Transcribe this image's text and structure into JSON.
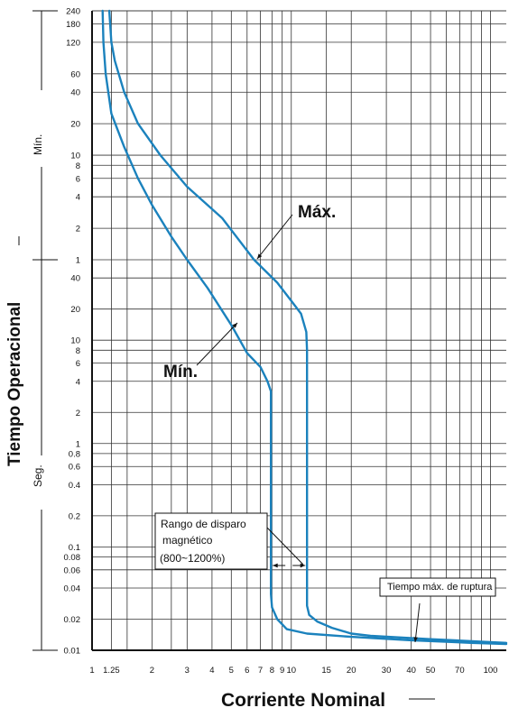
{
  "chart_data": {
    "type": "line",
    "title": "",
    "xlabel": "Corriente Nominal",
    "ylabel": "Tiempo Operacional",
    "x_scale": "log",
    "y_scale": "log",
    "xlim": [
      1,
      120
    ],
    "ylim_seconds": [
      0.01,
      14400
    ],
    "x_ticks": [
      "1",
      "1.25",
      "2",
      "3",
      "4",
      "5",
      "6",
      "7",
      "8",
      "9",
      "10",
      "15",
      "20",
      "30",
      "40",
      "50",
      "70",
      "100"
    ],
    "y_ticks": [
      {
        "label": "240",
        "seconds": 14400
      },
      {
        "label": "180",
        "seconds": 10800
      },
      {
        "label": "120",
        "seconds": 7200
      },
      {
        "label": "60",
        "seconds": 3600
      },
      {
        "label": "40",
        "seconds": 2400
      },
      {
        "label": "20",
        "seconds": 1200
      },
      {
        "label": "10",
        "seconds": 600
      },
      {
        "label": "8",
        "seconds": 480
      },
      {
        "label": "6",
        "seconds": 360
      },
      {
        "label": "4",
        "seconds": 240
      },
      {
        "label": "2",
        "seconds": 120
      },
      {
        "label": "1",
        "seconds": 60
      },
      {
        "label": "40",
        "seconds": 40
      },
      {
        "label": "20",
        "seconds": 20
      },
      {
        "label": "10",
        "seconds": 10
      },
      {
        "label": "8",
        "seconds": 8
      },
      {
        "label": "6",
        "seconds": 6
      },
      {
        "label": "4",
        "seconds": 4
      },
      {
        "label": "2",
        "seconds": 2
      },
      {
        "label": "1",
        "seconds": 1
      },
      {
        "label": "0.8",
        "seconds": 0.8
      },
      {
        "label": "0.6",
        "seconds": 0.6
      },
      {
        "label": "0.4",
        "seconds": 0.4
      },
      {
        "label": "0.2",
        "seconds": 0.2
      },
      {
        "label": "0.1",
        "seconds": 0.1
      },
      {
        "label": "0.08",
        "seconds": 0.08
      },
      {
        "label": "0.06",
        "seconds": 0.06
      },
      {
        "label": "0.04",
        "seconds": 0.04
      },
      {
        "label": "0.02",
        "seconds": 0.02
      },
      {
        "label": "0.01",
        "seconds": 0.01
      }
    ],
    "y_unit_labels": {
      "minutes": "Mín.",
      "seconds": "Seg."
    },
    "grid": true,
    "series": [
      {
        "name": "Mín.",
        "color": "#1b82bd",
        "points": [
          [
            1.13,
            14400
          ],
          [
            1.14,
            7200
          ],
          [
            1.17,
            3600
          ],
          [
            1.25,
            1500
          ],
          [
            1.45,
            720
          ],
          [
            1.7,
            360
          ],
          [
            2.0,
            200
          ],
          [
            2.5,
            100
          ],
          [
            3.0,
            60
          ],
          [
            3.8,
            32
          ],
          [
            5.0,
            14
          ],
          [
            6.0,
            7.5
          ],
          [
            7.0,
            5.5
          ],
          [
            7.6,
            4.0
          ],
          [
            7.9,
            3.2
          ],
          [
            7.9,
            0.035
          ],
          [
            8.0,
            0.026
          ],
          [
            8.5,
            0.02
          ],
          [
            9.5,
            0.016
          ],
          [
            12,
            0.0145
          ],
          [
            20,
            0.0135
          ],
          [
            40,
            0.0125
          ],
          [
            80,
            0.0118
          ],
          [
            120,
            0.0115
          ]
        ]
      },
      {
        "name": "Máx.",
        "color": "#1b82bd",
        "points": [
          [
            1.22,
            14400
          ],
          [
            1.25,
            7200
          ],
          [
            1.3,
            4800
          ],
          [
            1.45,
            2400
          ],
          [
            1.7,
            1200
          ],
          [
            2.2,
            600
          ],
          [
            3.0,
            300
          ],
          [
            4.5,
            150
          ],
          [
            6.5,
            60
          ],
          [
            8.5,
            36
          ],
          [
            10.0,
            24
          ],
          [
            11.2,
            18
          ],
          [
            11.9,
            12
          ],
          [
            12.0,
            8
          ],
          [
            12.0,
            0.027
          ],
          [
            12.3,
            0.022
          ],
          [
            13.5,
            0.019
          ],
          [
            16,
            0.0165
          ],
          [
            20,
            0.0145
          ],
          [
            25,
            0.0138
          ],
          [
            50,
            0.0128
          ],
          [
            120,
            0.0118
          ]
        ]
      }
    ],
    "annotations": {
      "max_label": "Máx.",
      "min_label": "Mín.",
      "magnetic_range": [
        "Rango de disparo",
        "magnético",
        "(800~1200%)"
      ],
      "max_break_time": "Tiempo máx. de ruptura"
    }
  }
}
